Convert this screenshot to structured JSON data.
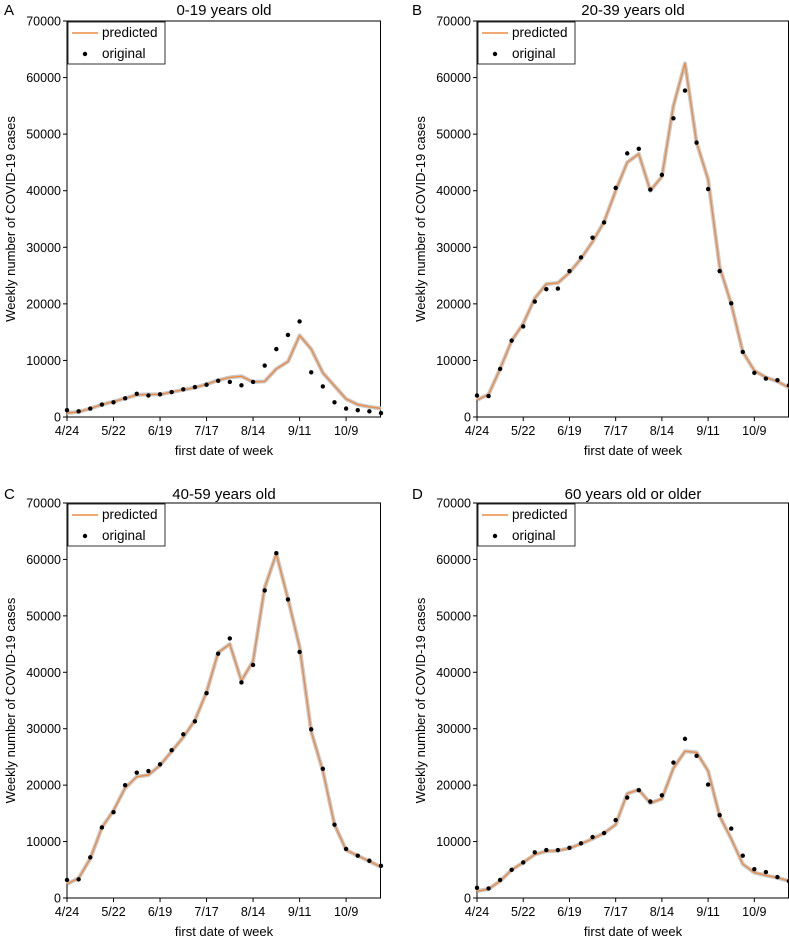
{
  "chart_data": [
    {
      "type": "line",
      "panel_label": "A",
      "title": "0-19 years old",
      "xlabel": "first date of week",
      "ylabel": "Weekly number of COVID-19 cases",
      "ylim": [
        0,
        70000
      ],
      "yticks": [
        0,
        10000,
        20000,
        30000,
        40000,
        50000,
        60000,
        70000
      ],
      "xlim": [
        0,
        27
      ],
      "xticks": [
        {
          "label": "4/24",
          "week": 0
        },
        {
          "label": "5/22",
          "week": 4
        },
        {
          "label": "6/19",
          "week": 8
        },
        {
          "label": "7/17",
          "week": 12
        },
        {
          "label": "8/14",
          "week": 16
        },
        {
          "label": "9/11",
          "week": 20
        },
        {
          "label": "10/9",
          "week": 24
        }
      ],
      "legend": {
        "position": "top-left",
        "entries": [
          "predicted",
          "original"
        ]
      },
      "series": [
        {
          "name": "predicted",
          "style": "line",
          "color": "#ed8b45",
          "values": [
            700,
            900,
            1500,
            2200,
            2700,
            3300,
            3900,
            4000,
            4000,
            4400,
            4800,
            5200,
            5800,
            6500,
            7000,
            7200,
            6200,
            6300,
            8500,
            9800,
            14400,
            12000,
            7800,
            5500,
            3200,
            2200,
            1800,
            1500
          ]
        },
        {
          "name": "original",
          "style": "points",
          "color": "#000000",
          "values": [
            1200,
            1000,
            1500,
            2200,
            2600,
            3300,
            4100,
            3800,
            4000,
            4400,
            4900,
            5300,
            5700,
            6400,
            6200,
            5600,
            6200,
            9100,
            12000,
            14500,
            16900,
            7900,
            5400,
            2600,
            1500,
            1200,
            1000,
            700
          ]
        }
      ]
    },
    {
      "type": "line",
      "panel_label": "B",
      "title": "20-39 years old",
      "xlabel": "first date of week",
      "ylabel": "Weekly number of COVID-19 cases",
      "ylim": [
        0,
        70000
      ],
      "yticks": [
        0,
        10000,
        20000,
        30000,
        40000,
        50000,
        60000,
        70000
      ],
      "xlim": [
        0,
        27
      ],
      "xticks": [
        {
          "label": "4/24",
          "week": 0
        },
        {
          "label": "5/22",
          "week": 4
        },
        {
          "label": "6/19",
          "week": 8
        },
        {
          "label": "7/17",
          "week": 12
        },
        {
          "label": "8/14",
          "week": 16
        },
        {
          "label": "9/11",
          "week": 20
        },
        {
          "label": "10/9",
          "week": 24
        }
      ],
      "legend": {
        "position": "top-left",
        "entries": [
          "predicted",
          "original"
        ]
      },
      "series": [
        {
          "name": "predicted",
          "style": "line",
          "color": "#ed8b45",
          "values": [
            3000,
            4000,
            8500,
            13500,
            16500,
            21000,
            23500,
            23700,
            25500,
            28000,
            31000,
            34500,
            40000,
            45000,
            46500,
            40000,
            42500,
            55000,
            62500,
            48500,
            42000,
            26500,
            20000,
            11500,
            8200,
            7000,
            6300,
            5200
          ]
        },
        {
          "name": "original",
          "style": "points",
          "color": "#000000",
          "values": [
            3800,
            3700,
            8500,
            13500,
            16000,
            20400,
            22600,
            22700,
            25800,
            28200,
            31700,
            34400,
            40500,
            46600,
            47400,
            40200,
            42800,
            52800,
            57700,
            48500,
            40300,
            25800,
            20100,
            11500,
            7800,
            6800,
            6500,
            5600
          ]
        }
      ]
    },
    {
      "type": "line",
      "panel_label": "C",
      "title": "40-59 years old",
      "xlabel": "first date of week",
      "ylabel": "Weekly number of COVID-19 cases",
      "ylim": [
        0,
        70000
      ],
      "yticks": [
        0,
        10000,
        20000,
        30000,
        40000,
        50000,
        60000,
        70000
      ],
      "xlim": [
        0,
        27
      ],
      "xticks": [
        {
          "label": "4/24",
          "week": 0
        },
        {
          "label": "5/22",
          "week": 4
        },
        {
          "label": "6/19",
          "week": 8
        },
        {
          "label": "7/17",
          "week": 12
        },
        {
          "label": "8/14",
          "week": 16
        },
        {
          "label": "9/11",
          "week": 20
        },
        {
          "label": "10/9",
          "week": 24
        }
      ],
      "legend": {
        "position": "top-left",
        "entries": [
          "predicted",
          "original"
        ]
      },
      "series": [
        {
          "name": "predicted",
          "style": "line",
          "color": "#ed8b45",
          "values": [
            2500,
            3500,
            7000,
            12500,
            15500,
            19500,
            21500,
            21800,
            23500,
            26000,
            28500,
            31500,
            36500,
            43500,
            45000,
            38500,
            42000,
            55000,
            61000,
            53000,
            44500,
            29500,
            22500,
            13000,
            8500,
            7500,
            6500,
            5500
          ]
        },
        {
          "name": "original",
          "style": "points",
          "color": "#000000",
          "values": [
            3200,
            3300,
            7200,
            12500,
            15200,
            20000,
            22200,
            22500,
            23700,
            26200,
            29000,
            31300,
            36300,
            43300,
            46000,
            38200,
            41300,
            54500,
            61100,
            52900,
            43600,
            29900,
            22900,
            13000,
            8700,
            7500,
            6600,
            5700
          ]
        }
      ]
    },
    {
      "type": "line",
      "panel_label": "D",
      "title": "60 years old or older",
      "xlabel": "first date of week",
      "ylabel": "Weekly number of COVID-19 cases",
      "ylim": [
        0,
        70000
      ],
      "yticks": [
        0,
        10000,
        20000,
        30000,
        40000,
        50000,
        60000,
        70000
      ],
      "xlim": [
        0,
        27
      ],
      "xticks": [
        {
          "label": "4/24",
          "week": 0
        },
        {
          "label": "5/22",
          "week": 4
        },
        {
          "label": "6/19",
          "week": 8
        },
        {
          "label": "7/17",
          "week": 12
        },
        {
          "label": "8/14",
          "week": 16
        },
        {
          "label": "9/11",
          "week": 20
        },
        {
          "label": "10/9",
          "week": 24
        }
      ],
      "legend": {
        "position": "top-left",
        "entries": [
          "predicted",
          "original"
        ]
      },
      "series": [
        {
          "name": "predicted",
          "style": "line",
          "color": "#ed8b45",
          "values": [
            1200,
            1600,
            3000,
            5000,
            6300,
            7700,
            8300,
            8400,
            8800,
            9600,
            10500,
            11500,
            13000,
            18500,
            19200,
            16800,
            17600,
            23000,
            26000,
            25800,
            22500,
            14500,
            10500,
            6000,
            4500,
            4000,
            3600,
            3000
          ]
        },
        {
          "name": "original",
          "style": "points",
          "color": "#000000",
          "values": [
            1800,
            1700,
            3200,
            5000,
            6300,
            8100,
            8500,
            8500,
            8900,
            9700,
            10800,
            11500,
            13800,
            17800,
            19100,
            17100,
            18200,
            24000,
            28200,
            25200,
            20100,
            14700,
            12300,
            7500,
            5100,
            4600,
            3700,
            3000
          ]
        }
      ]
    }
  ]
}
